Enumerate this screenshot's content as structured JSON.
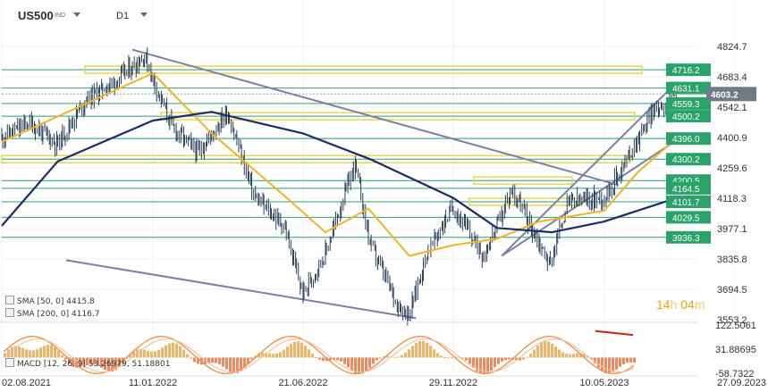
{
  "toolbar": {
    "symbol": "US500",
    "market": "IND",
    "interval": "D1"
  },
  "indicators": {
    "sma50_label": "SMA [50, 0]",
    "sma50_value": "4415.8",
    "sma200_label": "SMA [200, 0]",
    "sma200_value": "4116.7",
    "macd_label": "MACD [12, 26, 9]",
    "macd_value1": "53.26979",
    "macd_value2": "51.18801"
  },
  "timer": {
    "hours": "14",
    "h": "h",
    "minutes": "04",
    "m": "m"
  },
  "colors": {
    "price_line": "#2a3f5a",
    "sma50": "#f0b429",
    "sma200": "#1f2a6b",
    "level_band": "#e8d84a",
    "level_line": "#2e9e75",
    "badge_green": "#2aa36a",
    "badge_current": "#6f7a85",
    "trendline": "#7d7fa8",
    "macd_hist_pos": "#f0b469",
    "macd_hist_neg": "#ee8a5e",
    "divergence": "#d01f1f"
  },
  "chart_data": {
    "type": "line",
    "title": "US500",
    "ylim": [
      3553.2,
      4824.7
    ],
    "y_ticks": [
      "4824.7",
      "4683.4",
      "4542.1",
      "4400.9",
      "4259.6",
      "4118.3",
      "3977.1",
      "3835.8",
      "3694.5",
      "3553.2"
    ],
    "x_ticks": [
      "02.08.2021",
      "11.01.2022",
      "21.06.2022",
      "29.11.2022",
      "10.05.2023",
      "27.09.2023"
    ],
    "current_price": "4603.2",
    "levels": [
      "4716.2",
      "4631.1",
      "4559.3",
      "4500.2",
      "4396.0",
      "4300.2",
      "4200.5",
      "4164.5",
      "4101.7",
      "4029.5",
      "3936.3"
    ],
    "macd_ticks": [
      "122.5061",
      "31.88695",
      "-58.7322"
    ],
    "price_series": {
      "x": [
        "2021-08-02",
        "2021-09-01",
        "2021-10-01",
        "2021-11-01",
        "2021-12-01",
        "2022-01-03",
        "2022-01-11",
        "2022-02-01",
        "2022-03-01",
        "2022-04-01",
        "2022-05-01",
        "2022-06-01",
        "2022-06-21",
        "2022-07-15",
        "2022-08-16",
        "2022-09-01",
        "2022-10-01",
        "2022-10-13",
        "2022-11-01",
        "2022-11-29",
        "2023-01-01",
        "2023-02-01",
        "2023-03-13",
        "2023-04-01",
        "2023-05-10",
        "2023-06-01",
        "2023-07-01",
        "2023-07-27"
      ],
      "values": [
        4400,
        4470,
        4370,
        4580,
        4660,
        4780,
        4680,
        4450,
        4330,
        4520,
        4120,
        3990,
        3670,
        3860,
        4280,
        3910,
        3620,
        3580,
        3860,
        4080,
        3850,
        4160,
        3810,
        4100,
        4120,
        4280,
        4520,
        4603.2
      ]
    },
    "series": [
      {
        "name": "SMA [50, 0]",
        "x": [
          "2021-08-02",
          "2021-12-01",
          "2022-01-11",
          "2022-03-15",
          "2022-06-01",
          "2022-07-15",
          "2022-08-30",
          "2022-10-13",
          "2022-11-29",
          "2023-01-15",
          "2023-03-01",
          "2023-05-10",
          "2023-06-15",
          "2023-07-27"
        ],
        "values": [
          4380,
          4620,
          4700,
          4420,
          4130,
          3960,
          4070,
          3850,
          3900,
          3930,
          4010,
          4060,
          4240,
          4400
        ]
      },
      {
        "name": "SMA [200, 0]",
        "x": [
          "2021-08-02",
          "2021-10-01",
          "2022-01-11",
          "2022-03-15",
          "2022-06-21",
          "2022-09-01",
          "2022-11-29",
          "2023-01-15",
          "2023-03-15",
          "2023-05-10",
          "2023-07-27"
        ],
        "values": [
          3990,
          4290,
          4480,
          4520,
          4420,
          4300,
          4120,
          3980,
          3960,
          4010,
          4120
        ]
      }
    ]
  }
}
